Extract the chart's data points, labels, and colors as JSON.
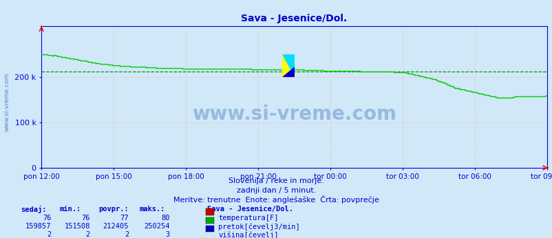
{
  "title": "Sava - Jesenice/Dol.",
  "title_color": "#0000cc",
  "bg_color": "#d0e8f8",
  "plot_bg_color": "#d0e8f8",
  "grid_color": "#ffaaaa",
  "axis_color": "#0000cc",
  "yticks": [
    0,
    100000,
    200000
  ],
  "ytick_labels": [
    "0",
    "100 k",
    "200 k"
  ],
  "ylim": [
    0,
    312000
  ],
  "xtick_labels": [
    "pon 12:00",
    "pon 15:00",
    "pon 18:00",
    "pon 21:00",
    "tor 00:00",
    "tor 03:00",
    "tor 06:00",
    "tor 09:00"
  ],
  "avg_line_value": 212405,
  "avg_line_color": "#009900",
  "line_color": "#00cc00",
  "line_width": 1.2,
  "watermark_text": "www.si-vreme.com",
  "watermark_color": "#4477bb",
  "subtitle1": "Slovenija / reke in morje.",
  "subtitle2": "zadnji dan / 5 minut.",
  "subtitle3": "Meritve: trenutne  Enote: anglešaške  Črta: povprečje",
  "subtitle_color": "#0000cc",
  "table_headers": [
    "sedaj:",
    "min.:",
    "povpr.:",
    "maks.:"
  ],
  "table_title": "Sava - Jesenice/Dol.",
  "table_color": "#0000cc",
  "rows": [
    {
      "sedaj": "76",
      "min": "76",
      "povpr": "77",
      "maks": "80",
      "color": "#cc0000",
      "label": "temperatura[F]"
    },
    {
      "sedaj": "159857",
      "min": "151508",
      "povpr": "212405",
      "maks": "250254",
      "color": "#00aa00",
      "label": "pretok[čevelj3/min]"
    },
    {
      "sedaj": "2",
      "min": "2",
      "povpr": "2",
      "maks": "3",
      "color": "#0000cc",
      "label": "višina[čevelj]"
    }
  ],
  "flow_data": [
    250254,
    250254,
    250254,
    249000,
    248000,
    247000,
    248000,
    247000,
    246000,
    245000,
    244000,
    244000,
    243000,
    242000,
    241000,
    241000,
    240000,
    239000,
    238000,
    237000,
    236000,
    236000,
    235000,
    234000,
    233000,
    232000,
    232000,
    231000,
    230000,
    229000,
    229000,
    228000,
    228000,
    227000,
    227000,
    226000,
    226000,
    225000,
    225000,
    224000,
    224000,
    224000,
    224000,
    224000,
    223000,
    223000,
    223000,
    222000,
    222000,
    222000,
    222000,
    222000,
    221000,
    221000,
    221000,
    221000,
    221000,
    220000,
    220000,
    220000,
    220000,
    220000,
    220000,
    220000,
    220000,
    219000,
    219000,
    219000,
    219000,
    219000,
    218000,
    218000,
    218000,
    218000,
    218000,
    218000,
    218000,
    218000,
    218000,
    218000,
    218000,
    218000,
    218000,
    218000,
    218000,
    218000,
    218000,
    218000,
    218000,
    218000,
    218000,
    218000,
    218000,
    218000,
    218000,
    218000,
    218000,
    218000,
    218000,
    218000,
    218000,
    218000,
    218000,
    218000,
    217000,
    217000,
    217000,
    217000,
    217000,
    217000,
    217000,
    217000,
    217000,
    217000,
    217000,
    217000,
    217000,
    217000,
    216000,
    216000,
    216000,
    216000,
    216000,
    216000,
    216000,
    216000,
    216000,
    216000,
    216000,
    216000,
    215000,
    215000,
    215000,
    215000,
    215000,
    215000,
    215000,
    215000,
    215000,
    215000,
    214000,
    214000,
    214000,
    214000,
    214000,
    214000,
    214000,
    214000,
    214000,
    213000,
    213000,
    213000,
    213000,
    213000,
    213000,
    213000,
    213000,
    213000,
    212000,
    212000,
    212000,
    212000,
    212000,
    212000,
    212000,
    212000,
    212000,
    212000,
    212000,
    212000,
    212000,
    212000,
    212000,
    212000,
    212000,
    211000,
    211000,
    211000,
    211000,
    210000,
    210000,
    209000,
    208000,
    207000,
    206000,
    205000,
    204000,
    203000,
    202000,
    201000,
    200000,
    199000,
    198000,
    197000,
    196000,
    195000,
    193000,
    191000,
    190000,
    188000,
    186000,
    184000,
    182000,
    180000,
    178000,
    176000,
    175000,
    174000,
    173000,
    172000,
    171000,
    170000,
    169000,
    168000,
    167000,
    166000,
    165000,
    164000,
    163000,
    162000,
    161000,
    160000,
    159000,
    158000,
    157000,
    156000,
    155000,
    155000,
    155000,
    155000,
    155000,
    155000,
    155000,
    155000,
    156000,
    157000,
    158000,
    158000,
    158000,
    158000,
    158000,
    158000,
    158000,
    158000,
    158000,
    158000,
    158000,
    158000,
    158000,
    158000,
    159000,
    159857
  ]
}
